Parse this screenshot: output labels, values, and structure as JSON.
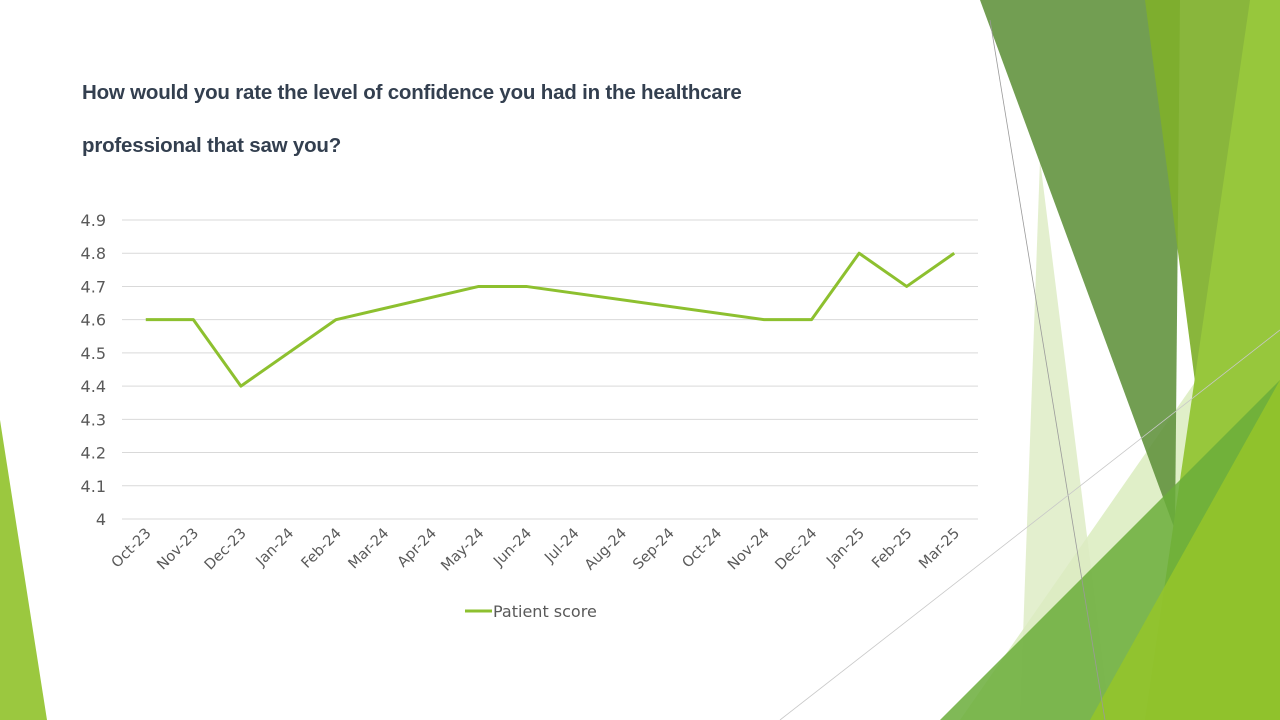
{
  "slide": {
    "title_lines": [
      "How would you rate the level of confidence you had in the healthcare",
      "professional that saw you?"
    ]
  },
  "colors": {
    "series": "#8dc02f",
    "gridline": "#d9d9d9",
    "tick_text": "#595959",
    "title_text": "#333f4f"
  },
  "chart_data": {
    "type": "line",
    "title": "How would you rate the level of confidence you had in the healthcare professional that saw you?",
    "xlabel": "",
    "ylabel": "",
    "categories": [
      "Oct-23",
      "Nov-23",
      "Dec-23",
      "Jan-24",
      "Feb-24",
      "Mar-24",
      "Apr-24",
      "May-24",
      "Jun-24",
      "Jul-24",
      "Aug-24",
      "Sep-24",
      "Oct-24",
      "Nov-24",
      "Dec-24",
      "Jan-25",
      "Feb-25",
      "Mar-25"
    ],
    "series": [
      {
        "name": "Patient score",
        "values": [
          4.6,
          4.6,
          4.4,
          null,
          4.6,
          null,
          null,
          4.7,
          4.7,
          null,
          null,
          null,
          null,
          4.6,
          4.6,
          4.8,
          4.7,
          4.8
        ],
        "gaps": "connected"
      }
    ],
    "ylim": [
      4.0,
      4.9
    ],
    "yticks": [
      "4",
      "4.1",
      "4.2",
      "4.3",
      "4.4",
      "4.5",
      "4.6",
      "4.7",
      "4.8",
      "4.9"
    ],
    "ytick_values": [
      4.0,
      4.1,
      4.2,
      4.3,
      4.4,
      4.5,
      4.6,
      4.7,
      4.8,
      4.9
    ],
    "grid": true,
    "legend": {
      "position": "bottom",
      "entries": [
        "Patient score"
      ]
    }
  }
}
